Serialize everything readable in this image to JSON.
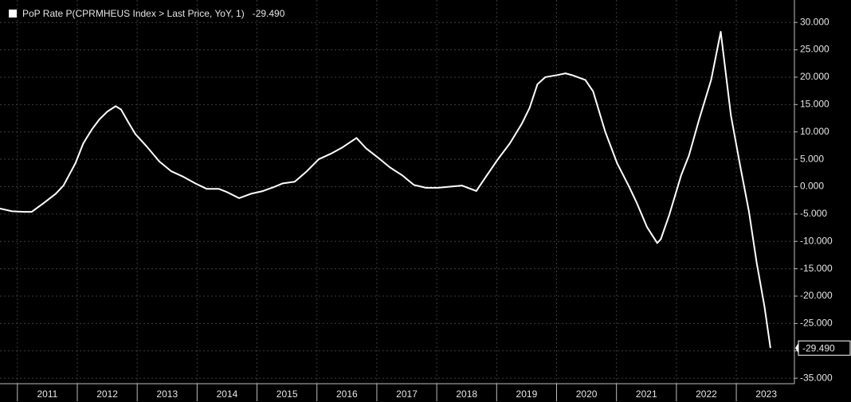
{
  "chart_data": {
    "type": "line",
    "grid": true,
    "legend": "top-left",
    "xlim": [
      2010.71,
      2023.97
    ],
    "xticks": [
      {
        "value": 2011,
        "label": "2011"
      },
      {
        "value": 2012,
        "label": "2012"
      },
      {
        "value": 2013,
        "label": "2013"
      },
      {
        "value": 2014,
        "label": "2014"
      },
      {
        "value": 2015,
        "label": "2015"
      },
      {
        "value": 2016,
        "label": "2016"
      },
      {
        "value": 2017,
        "label": "2017"
      },
      {
        "value": 2018,
        "label": "2018"
      },
      {
        "value": 2019,
        "label": "2019"
      },
      {
        "value": 2020,
        "label": "2020"
      },
      {
        "value": 2021,
        "label": "2021"
      },
      {
        "value": 2022,
        "label": "2022"
      },
      {
        "value": 2023,
        "label": "2023"
      }
    ],
    "ylim": [
      -36.0,
      34.1
    ],
    "yticks": [
      {
        "value": 30,
        "label": "30.000"
      },
      {
        "value": 25,
        "label": "25.000"
      },
      {
        "value": 20,
        "label": "20.000"
      },
      {
        "value": 15,
        "label": "15.000"
      },
      {
        "value": 10,
        "label": "10.000"
      },
      {
        "value": 5,
        "label": "5.000"
      },
      {
        "value": 0,
        "label": "0.000"
      },
      {
        "value": -5,
        "label": "-5.000"
      },
      {
        "value": -10,
        "label": "-10.000"
      },
      {
        "value": -15,
        "label": "-15.000"
      },
      {
        "value": -20,
        "label": "-20.000"
      },
      {
        "value": -25,
        "label": "-25.000"
      },
      {
        "value": -30,
        "label": "-30.000"
      },
      {
        "value": -35,
        "label": "-35.000"
      }
    ],
    "x": [
      2010.71,
      2010.91,
      2011.11,
      2011.24,
      2011.44,
      2011.64,
      2011.77,
      2011.97,
      2012.1,
      2012.24,
      2012.37,
      2012.5,
      2012.64,
      2012.73,
      2012.84,
      2012.97,
      2013.17,
      2013.37,
      2013.57,
      2013.77,
      2013.97,
      2014.16,
      2014.36,
      2014.5,
      2014.7,
      2014.9,
      2015.1,
      2015.3,
      2015.43,
      2015.63,
      2015.83,
      2016.03,
      2016.23,
      2016.43,
      2016.66,
      2016.82,
      2017.02,
      2017.22,
      2017.42,
      2017.62,
      2017.82,
      2018.02,
      2018.22,
      2018.42,
      2018.66,
      2018.82,
      2019.02,
      2019.22,
      2019.42,
      2019.55,
      2019.68,
      2019.81,
      2020.02,
      2020.15,
      2020.28,
      2020.48,
      2020.61,
      2020.81,
      2021.01,
      2021.21,
      2021.34,
      2021.51,
      2021.68,
      2021.74,
      2021.88,
      2022.08,
      2022.21,
      2022.38,
      2022.58,
      2022.74,
      2022.91,
      2023.07,
      2023.21,
      2023.34,
      2023.47,
      2023.57
    ],
    "series": [
      {
        "name": "PoP Rate P(CPRMHEUS Index > Last Price, YoY, 1)",
        "color": "#ffffff",
        "last_value_label": "-29.490",
        "values": [
          -4.0,
          -4.5,
          -4.6,
          -4.6,
          -3.0,
          -1.3,
          0.2,
          4.3,
          7.9,
          10.4,
          12.3,
          13.7,
          14.7,
          14.1,
          12.0,
          9.6,
          7.2,
          4.6,
          2.8,
          1.8,
          0.6,
          -0.4,
          -0.4,
          -1.0,
          -2.1,
          -1.3,
          -0.8,
          0.0,
          0.6,
          0.9,
          2.8,
          5.0,
          6.0,
          7.2,
          8.9,
          7.0,
          5.3,
          3.5,
          2.1,
          0.3,
          -0.2,
          -0.2,
          0.0,
          0.2,
          -0.8,
          1.8,
          5.0,
          7.9,
          11.5,
          14.4,
          18.7,
          20.0,
          20.4,
          20.7,
          20.3,
          19.5,
          17.4,
          10.1,
          4.3,
          0.0,
          -3.0,
          -7.4,
          -10.3,
          -9.6,
          -5.2,
          2.1,
          5.7,
          12.3,
          19.5,
          28.3,
          13.0,
          3.5,
          -4.5,
          -13.9,
          -21.9,
          -29.49
        ]
      }
    ]
  }
}
